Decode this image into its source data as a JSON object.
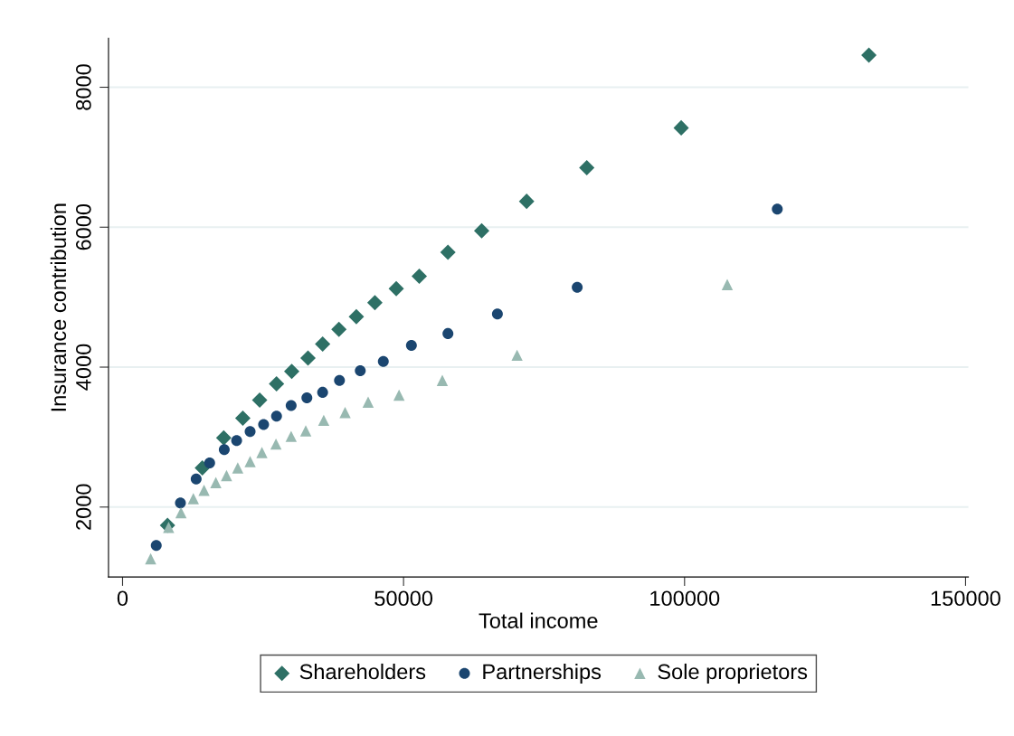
{
  "chart_data": {
    "type": "scatter",
    "xlabel": "Total income",
    "ylabel": "Insurance contribution",
    "xlim": [
      -2500,
      150500
    ],
    "ylim": [
      1000,
      8700
    ],
    "xticks": [
      0,
      50000,
      100000,
      150000
    ],
    "yticks": [
      2000,
      4000,
      6000,
      8000
    ],
    "grid": "y",
    "legend": "bottom",
    "series": [
      {
        "name": "Shareholders",
        "color": "#2e7065",
        "marker": "diamond",
        "x": [
          8000,
          14200,
          18000,
          21400,
          24400,
          27400,
          30100,
          33000,
          35600,
          38500,
          41600,
          44900,
          48700,
          52800,
          57900,
          63900,
          71900,
          82600,
          99400,
          132800
        ],
        "values": [
          1740,
          2560,
          2990,
          3270,
          3530,
          3760,
          3940,
          4130,
          4330,
          4540,
          4720,
          4920,
          5120,
          5300,
          5640,
          5950,
          6370,
          6850,
          7420,
          8460
        ]
      },
      {
        "name": "Partnerships",
        "color": "#1b4670",
        "marker": "circle",
        "x": [
          6000,
          10300,
          13100,
          15500,
          18100,
          20300,
          22700,
          25100,
          27400,
          30000,
          32800,
          35600,
          38600,
          42300,
          46400,
          51400,
          57900,
          66700,
          80900,
          116500
        ],
        "values": [
          1450,
          2060,
          2400,
          2630,
          2820,
          2950,
          3080,
          3180,
          3300,
          3450,
          3560,
          3640,
          3810,
          3950,
          4080,
          4310,
          4480,
          4760,
          5140,
          6260
        ]
      },
      {
        "name": "Sole proprietors",
        "color": "#98b9b1",
        "marker": "triangle",
        "x": [
          5000,
          8200,
          10400,
          12600,
          14500,
          16600,
          18500,
          20500,
          22700,
          24800,
          27300,
          30000,
          32600,
          35800,
          39600,
          43700,
          49200,
          56900,
          70200,
          107600
        ],
        "values": [
          1260,
          1710,
          1920,
          2120,
          2240,
          2350,
          2450,
          2560,
          2650,
          2780,
          2900,
          3010,
          3090,
          3240,
          3350,
          3500,
          3600,
          3810,
          4170,
          5180
        ]
      }
    ]
  }
}
